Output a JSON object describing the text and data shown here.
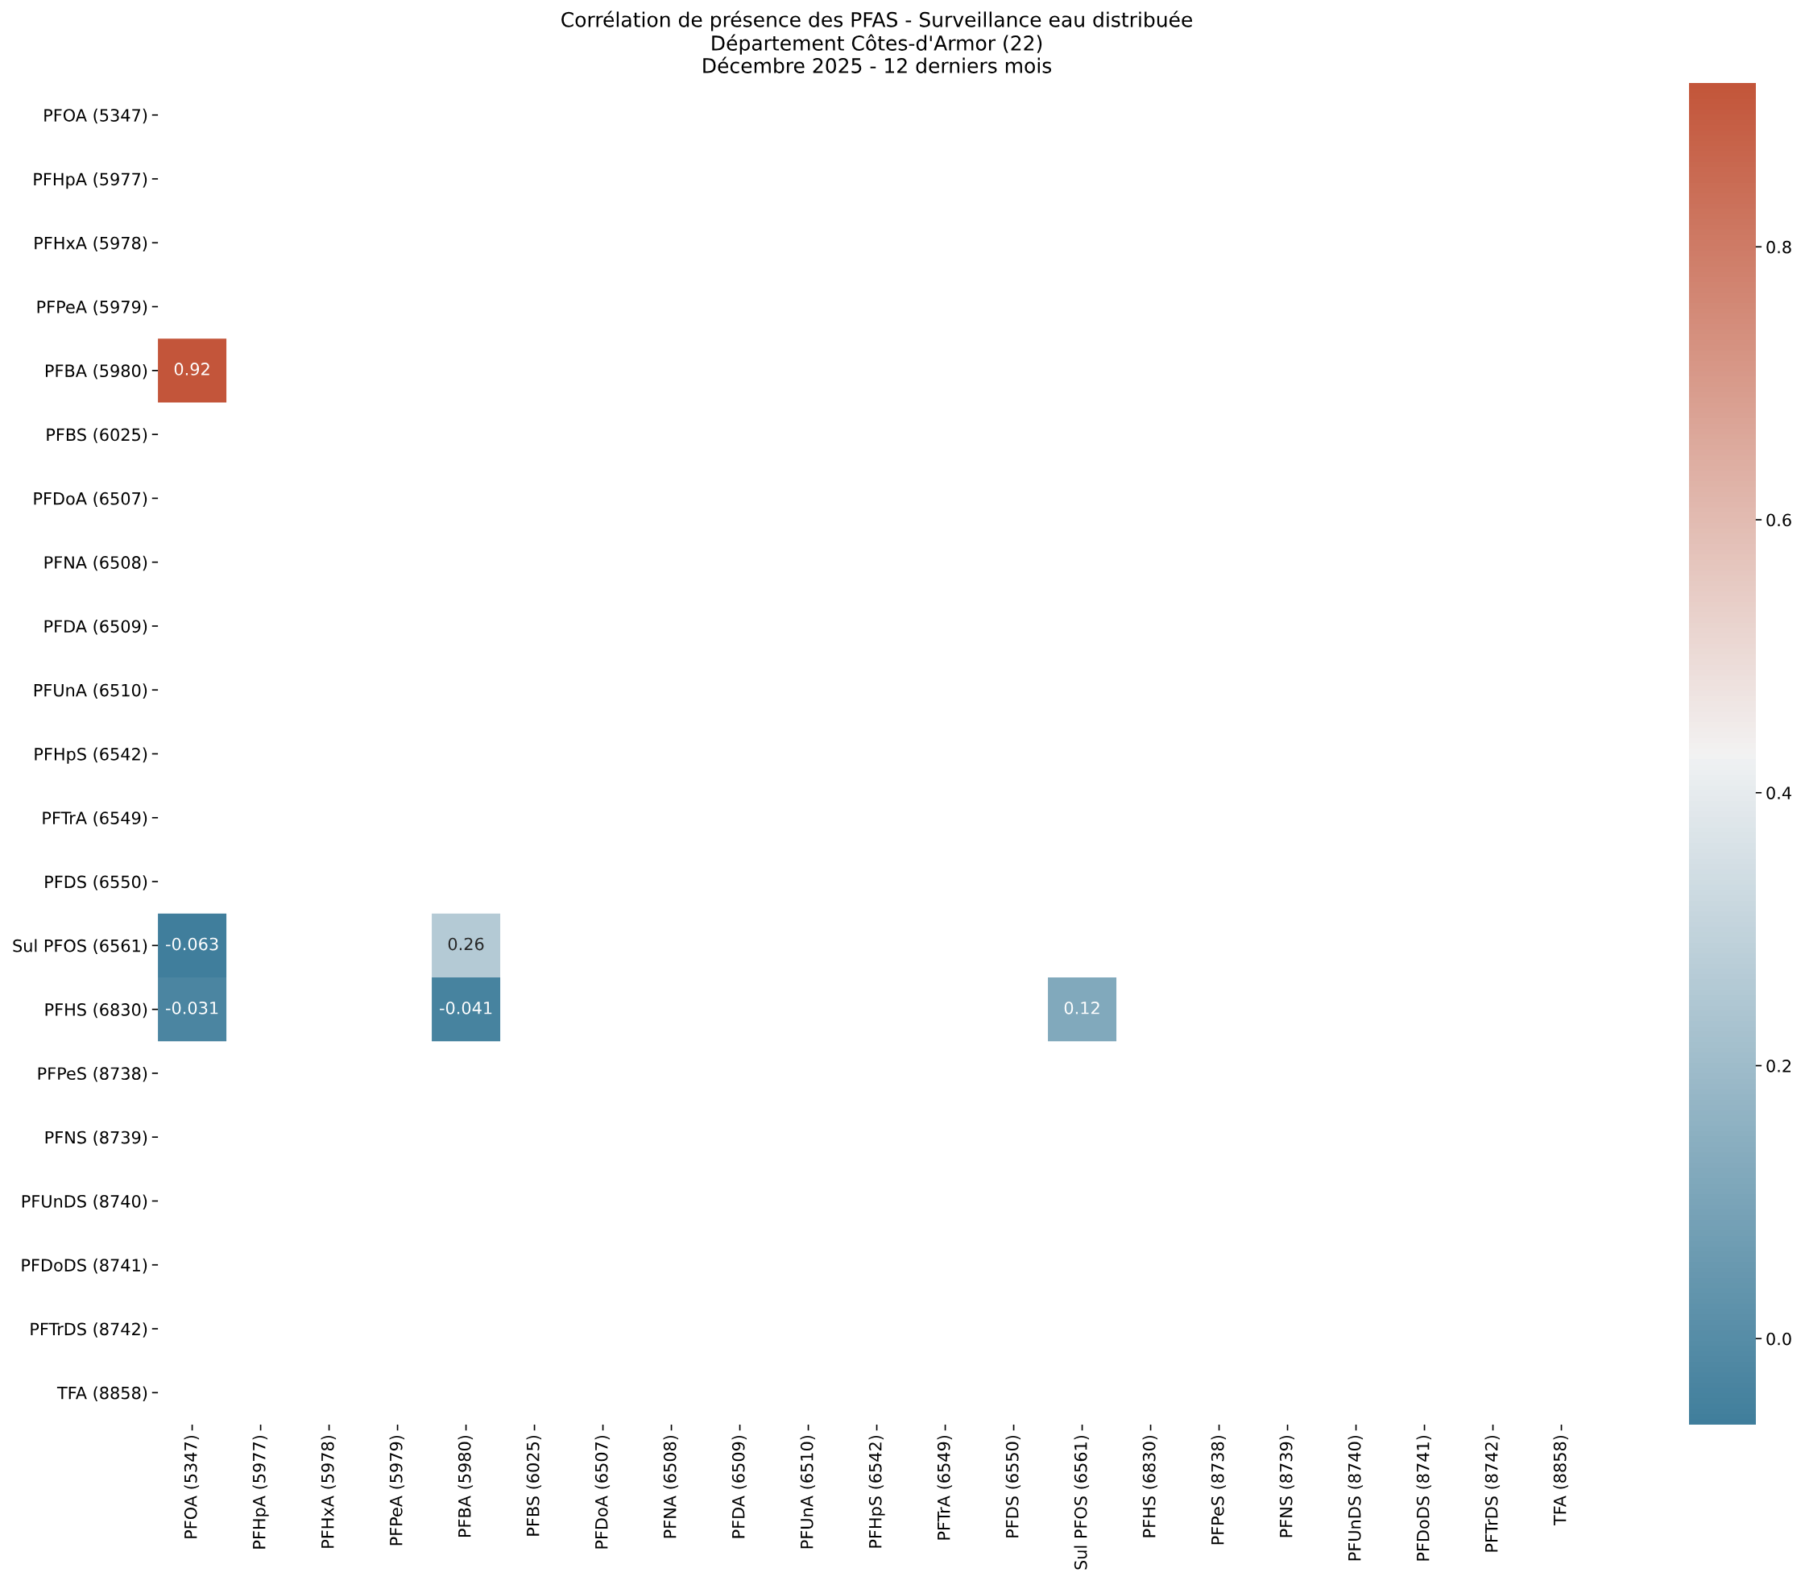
{
  "chart_data": {
    "type": "heatmap",
    "title": "Corrélation de présence des PFAS - Surveillance eau distribuée\nDépartement Côtes-d'Armor (22)\nDécembre 2025 - 12 derniers mois",
    "categories": [
      "PFOA (5347)",
      "PFHpA (5977)",
      "PFHxA (5978)",
      "PFPeA (5979)",
      "PFBA (5980)",
      "PFBS (6025)",
      "PFDoA (6507)",
      "PFNA (6508)",
      "PFDA (6509)",
      "PFUnA (6510)",
      "PFHpS (6542)",
      "PFTrA (6549)",
      "PFDS (6550)",
      "Sul PFOS (6561)",
      "PFHS (6830)",
      "PFPeS (8738)",
      "PFNS (8739)",
      "PFUnDS (8740)",
      "PFDoDS (8741)",
      "PFTrDS (8742)",
      "TFA (8858)"
    ],
    "y_categories": [
      "PFOA (5347)",
      "PFHpA (5977)",
      "PFHxA (5978)",
      "PFPeA (5979)",
      "PFBA (5980)",
      "PFBS (6025)",
      "PFDoA (6507)",
      "PFNA (6508)",
      "PFDA (6509)",
      "PFUnA (6510)",
      "PFHpS (6542)",
      "PFTrA (6549)",
      "PFDS (6550)",
      "Sul PFOS (6561)",
      "PFHS (6830)",
      "PFPeS (8738)",
      "PFNS (8739)",
      "PFUnDS (8740)",
      "PFDoDS (8741)",
      "PFTrDS (8742)",
      "TFA (8858)"
    ],
    "cells": [
      [
        null,
        null,
        null,
        null,
        null,
        null,
        null,
        null,
        null,
        null,
        null,
        null,
        null,
        null,
        null,
        null,
        null,
        null,
        null,
        null,
        null
      ],
      [
        null,
        null,
        null,
        null,
        null,
        null,
        null,
        null,
        null,
        null,
        null,
        null,
        null,
        null,
        null,
        null,
        null,
        null,
        null,
        null,
        null
      ],
      [
        null,
        null,
        null,
        null,
        null,
        null,
        null,
        null,
        null,
        null,
        null,
        null,
        null,
        null,
        null,
        null,
        null,
        null,
        null,
        null,
        null
      ],
      [
        null,
        null,
        null,
        null,
        null,
        null,
        null,
        null,
        null,
        null,
        null,
        null,
        null,
        null,
        null,
        null,
        null,
        null,
        null,
        null,
        null
      ],
      [
        0.92,
        null,
        null,
        null,
        null,
        null,
        null,
        null,
        null,
        null,
        null,
        null,
        null,
        null,
        null,
        null,
        null,
        null,
        null,
        null,
        null
      ],
      [
        null,
        null,
        null,
        null,
        null,
        null,
        null,
        null,
        null,
        null,
        null,
        null,
        null,
        null,
        null,
        null,
        null,
        null,
        null,
        null,
        null
      ],
      [
        null,
        null,
        null,
        null,
        null,
        null,
        null,
        null,
        null,
        null,
        null,
        null,
        null,
        null,
        null,
        null,
        null,
        null,
        null,
        null,
        null
      ],
      [
        null,
        null,
        null,
        null,
        null,
        null,
        null,
        null,
        null,
        null,
        null,
        null,
        null,
        null,
        null,
        null,
        null,
        null,
        null,
        null,
        null
      ],
      [
        null,
        null,
        null,
        null,
        null,
        null,
        null,
        null,
        null,
        null,
        null,
        null,
        null,
        null,
        null,
        null,
        null,
        null,
        null,
        null,
        null
      ],
      [
        null,
        null,
        null,
        null,
        null,
        null,
        null,
        null,
        null,
        null,
        null,
        null,
        null,
        null,
        null,
        null,
        null,
        null,
        null,
        null,
        null
      ],
      [
        null,
        null,
        null,
        null,
        null,
        null,
        null,
        null,
        null,
        null,
        null,
        null,
        null,
        null,
        null,
        null,
        null,
        null,
        null,
        null,
        null
      ],
      [
        null,
        null,
        null,
        null,
        null,
        null,
        null,
        null,
        null,
        null,
        null,
        null,
        null,
        null,
        null,
        null,
        null,
        null,
        null,
        null,
        null
      ],
      [
        null,
        null,
        null,
        null,
        null,
        null,
        null,
        null,
        null,
        null,
        null,
        null,
        null,
        null,
        null,
        null,
        null,
        null,
        null,
        null,
        null
      ],
      [
        -0.063,
        null,
        null,
        null,
        0.26,
        null,
        null,
        null,
        null,
        null,
        null,
        null,
        null,
        null,
        null,
        null,
        null,
        null,
        null,
        null,
        null
      ],
      [
        -0.031,
        null,
        null,
        null,
        -0.041,
        null,
        null,
        null,
        null,
        null,
        null,
        null,
        null,
        0.12,
        null,
        null,
        null,
        null,
        null,
        null,
        null
      ],
      [
        null,
        null,
        null,
        null,
        null,
        null,
        null,
        null,
        null,
        null,
        null,
        null,
        null,
        null,
        null,
        null,
        null,
        null,
        null,
        null,
        null
      ],
      [
        null,
        null,
        null,
        null,
        null,
        null,
        null,
        null,
        null,
        null,
        null,
        null,
        null,
        null,
        null,
        null,
        null,
        null,
        null,
        null,
        null
      ],
      [
        null,
        null,
        null,
        null,
        null,
        null,
        null,
        null,
        null,
        null,
        null,
        null,
        null,
        null,
        null,
        null,
        null,
        null,
        null,
        null,
        null
      ],
      [
        null,
        null,
        null,
        null,
        null,
        null,
        null,
        null,
        null,
        null,
        null,
        null,
        null,
        null,
        null,
        null,
        null,
        null,
        null,
        null,
        null
      ],
      [
        null,
        null,
        null,
        null,
        null,
        null,
        null,
        null,
        null,
        null,
        null,
        null,
        null,
        null,
        null,
        null,
        null,
        null,
        null,
        null,
        null
      ],
      [
        null,
        null,
        null,
        null,
        null,
        null,
        null,
        null,
        null,
        null,
        null,
        null,
        null,
        null,
        null,
        null,
        null,
        null,
        null,
        null,
        null
      ]
    ],
    "clim": [
      -0.063,
      0.92
    ],
    "cticks": [
      {
        "value": 0,
        "label": "0.0"
      },
      0.2,
      0.4,
      0.6,
      0.8
    ],
    "data_labels": true
  }
}
